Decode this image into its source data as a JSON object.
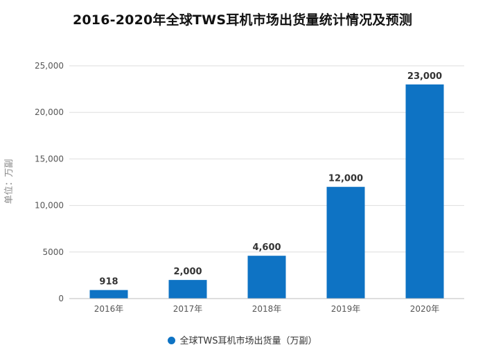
{
  "chart_data": {
    "type": "bar",
    "title": "2016-2020年全球TWS耳机市场出货量统计情况及预测",
    "ylabel": "单位：万副",
    "xlabel": "",
    "categories": [
      "2016年",
      "2017年",
      "2018年",
      "2019年",
      "2020年"
    ],
    "series": [
      {
        "name": "全球TWS耳机市场出货量（万副）",
        "values": [
          918,
          2000,
          4600,
          12000,
          23000
        ],
        "labels": [
          "918",
          "2,000",
          "4,600",
          "12,000",
          "23,000"
        ],
        "color": "#0e73c4"
      }
    ],
    "ylim": [
      0,
      25000
    ],
    "yticks": [
      0,
      5000,
      10000,
      15000,
      20000,
      25000
    ],
    "ytick_labels": [
      "0",
      "5000",
      "10,000",
      "15,000",
      "20,000",
      "25,000"
    ],
    "grid": true,
    "legend_position": "bottom"
  }
}
